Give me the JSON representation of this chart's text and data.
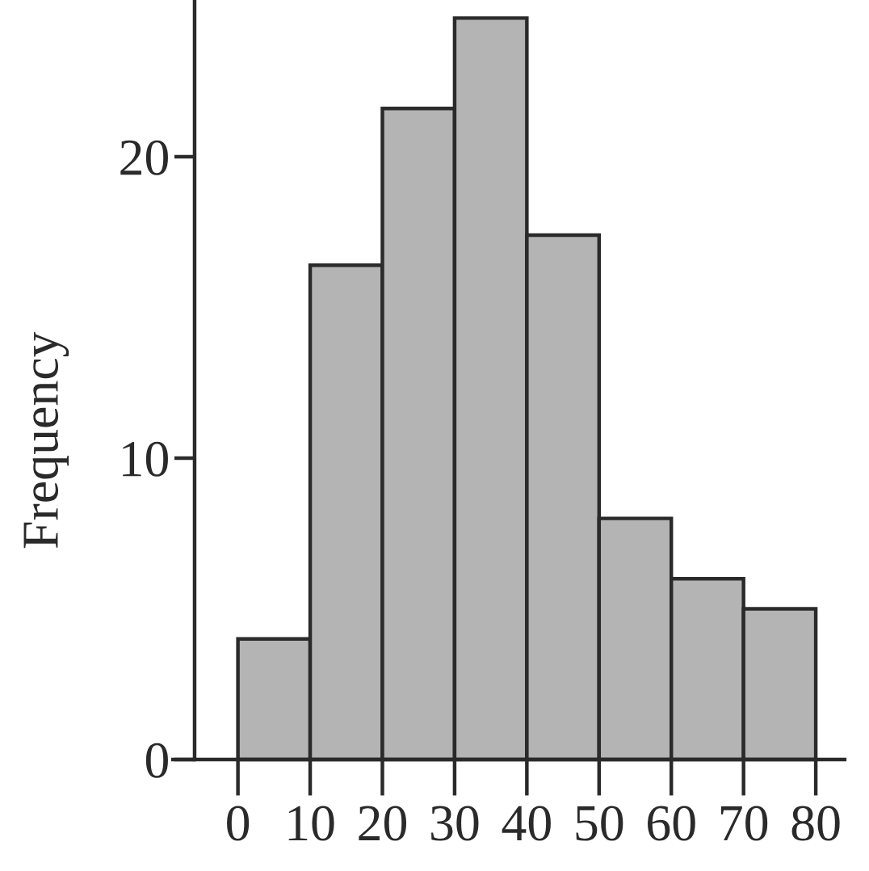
{
  "chart_data": {
    "type": "histogram",
    "ylabel": "Frequency",
    "bins": [
      0,
      10,
      20,
      30,
      40,
      50,
      60,
      70,
      80
    ],
    "values": [
      4,
      16.4,
      21.6,
      24.6,
      17.4,
      8,
      6,
      5
    ],
    "color": "#b4b4b4",
    "xlim": [
      -9,
      84
    ],
    "xticks": [
      0,
      10,
      20,
      30,
      40,
      50,
      60,
      70,
      80
    ],
    "ylim": [
      0,
      25.2
    ],
    "yticks": [
      0,
      10,
      20
    ],
    "grid": false
  }
}
